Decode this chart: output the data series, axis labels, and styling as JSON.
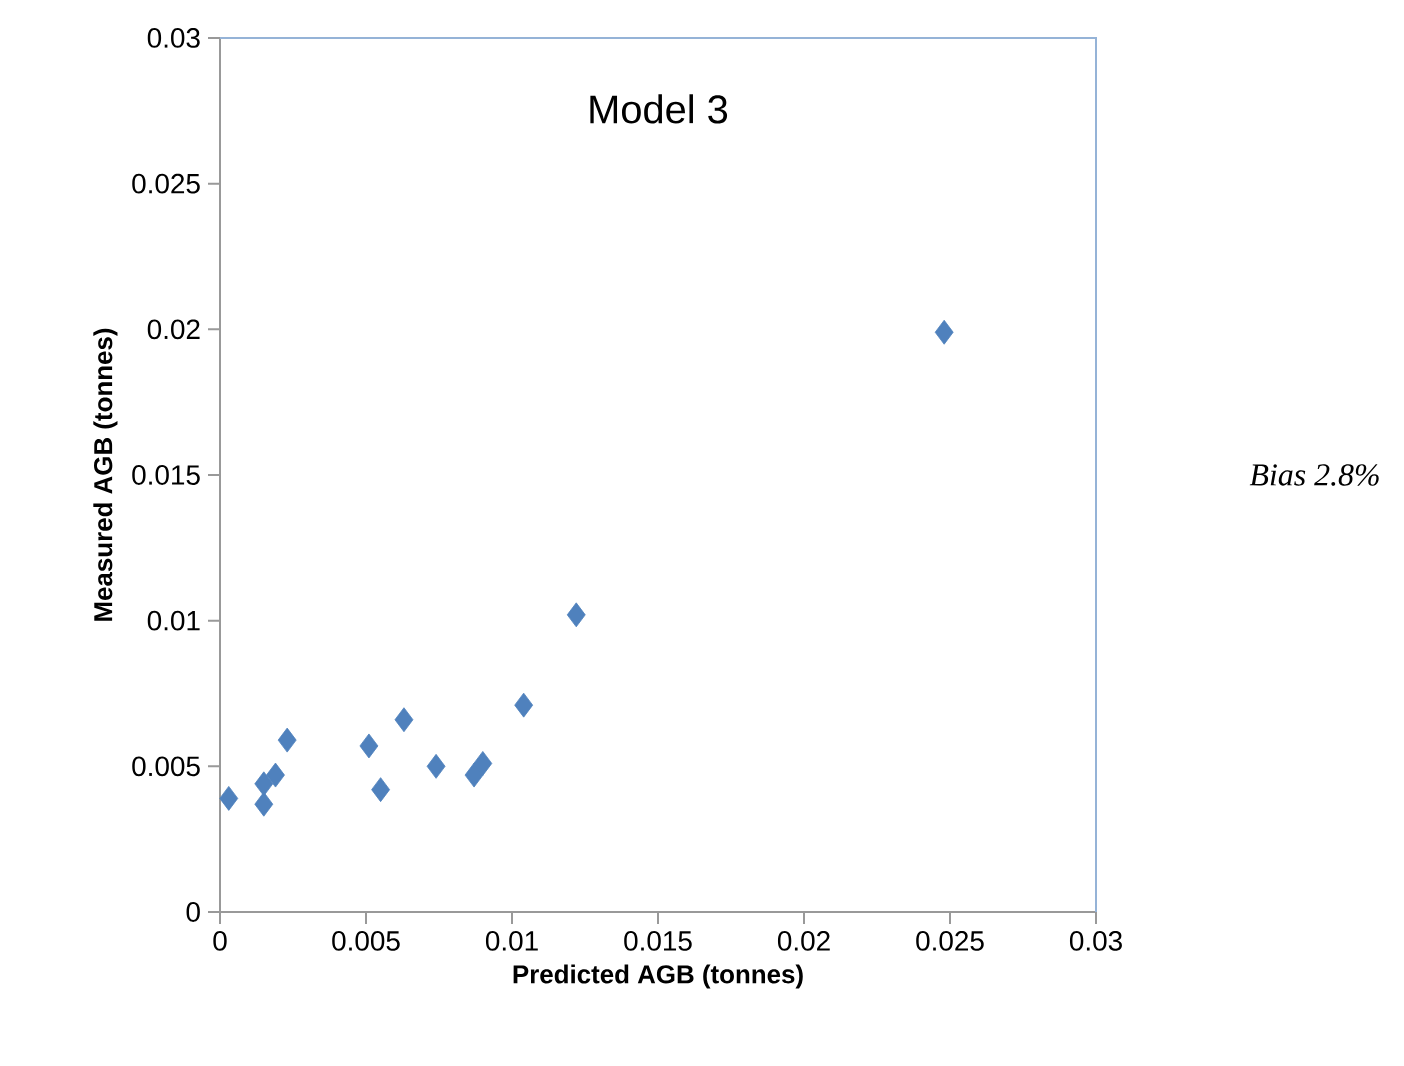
{
  "chart_data": {
    "type": "scatter",
    "title": "Model 3",
    "xlabel": "Predicted AGB (tonnes)",
    "ylabel": "Measured AGB (tonnes)",
    "annotations": [
      "Bias 2.8%"
    ],
    "x": [
      0.0003,
      0.0015,
      0.0015,
      0.0019,
      0.0023,
      0.0051,
      0.0055,
      0.0063,
      0.0074,
      0.0087,
      0.009,
      0.0104,
      0.0122,
      0.0248
    ],
    "values": [
      0.0039,
      0.0037,
      0.0044,
      0.0047,
      0.0059,
      0.0057,
      0.0042,
      0.0066,
      0.005,
      0.0047,
      0.0051,
      0.0071,
      0.0102,
      0.0199
    ],
    "color": "#4f81bd",
    "marker": "diamond",
    "xlim": [
      0,
      0.03
    ],
    "ylim": [
      0,
      0.03
    ],
    "xticks": [
      0,
      0.005,
      0.01,
      0.015,
      0.02,
      0.025,
      0.03
    ],
    "yticks": [
      0,
      0.005,
      0.01,
      0.015,
      0.02,
      0.025,
      0.03
    ]
  }
}
